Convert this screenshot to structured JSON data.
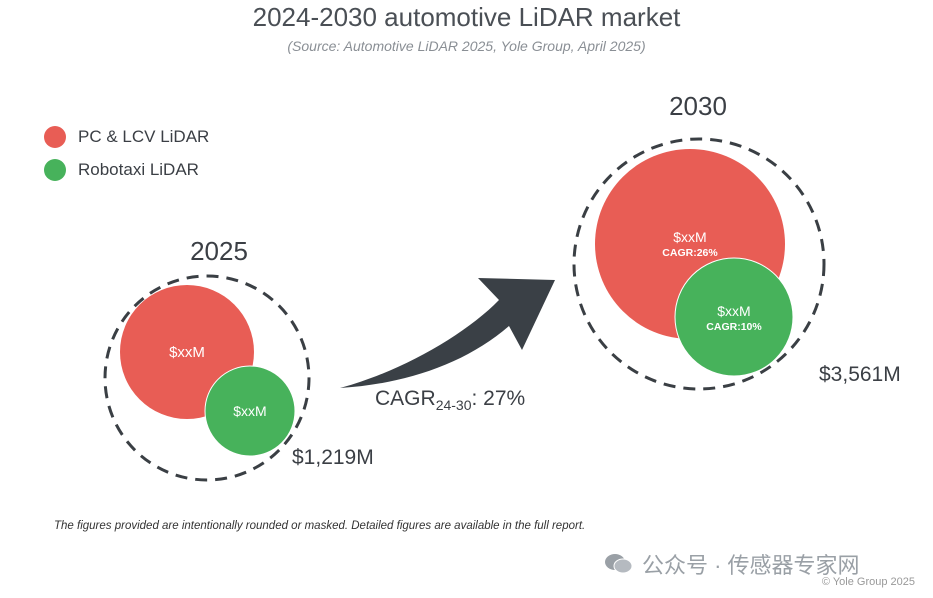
{
  "title": "2024-2030 automotive LiDAR market",
  "subtitle": "(Source: Automotive LiDAR 2025, Yole Group, April 2025)",
  "legend": [
    {
      "label": "PC & LCV LiDAR",
      "color": "#e85d55"
    },
    {
      "label": "Robotaxi LiDAR",
      "color": "#47b25b"
    }
  ],
  "chart_data": {
    "type": "bubble",
    "title": "2024-2030 automotive LiDAR market",
    "groups": [
      {
        "year": "2025",
        "total": "$1,219M",
        "segments": [
          {
            "name": "PC & LCV LiDAR",
            "value": "$xxM",
            "cagr": ""
          },
          {
            "name": "Robotaxi LiDAR",
            "value": "$xxM",
            "cagr": ""
          }
        ]
      },
      {
        "year": "2030",
        "total": "$3,561M",
        "segments": [
          {
            "name": "PC & LCV LiDAR",
            "value": "$xxM",
            "cagr": "CAGR:26%"
          },
          {
            "name": "Robotaxi LiDAR",
            "value": "$xxM",
            "cagr": "CAGR:10%"
          }
        ]
      }
    ],
    "arrow_label": {
      "prefix": "CAGR",
      "subscript": "24-30",
      "suffix": ": 27%"
    }
  },
  "colors": {
    "pc": "#e85d55",
    "robotaxi": "#47b25b",
    "arrow": "#3a4046",
    "dash": "#3a3f44"
  },
  "footnote": "The figures provided are intentionally rounded or masked. Detailed figures are available in the full report.",
  "watermark": "公众号 · 传感器专家网",
  "copyright": "© Yole Group 2025"
}
